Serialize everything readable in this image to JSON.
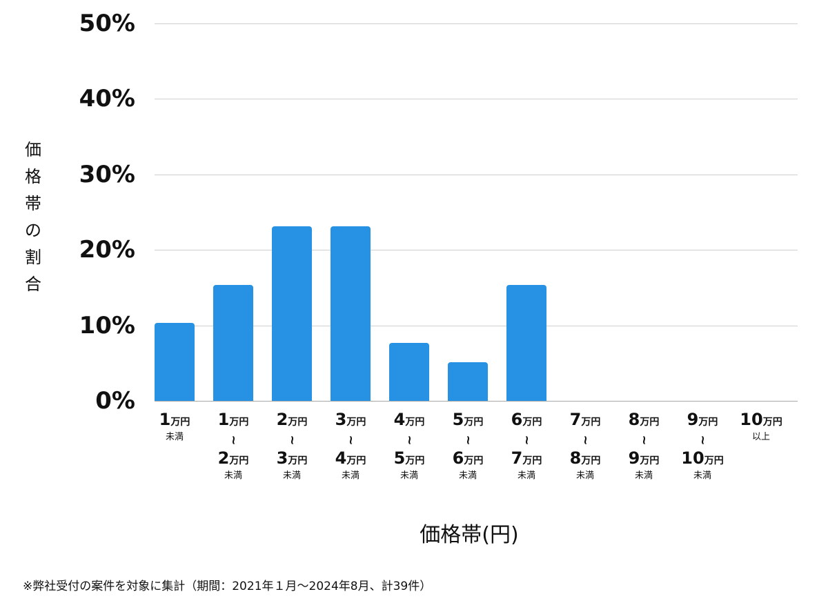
{
  "chart_data": {
    "type": "bar",
    "title": "",
    "xlabel": "価格帯(円)",
    "ylabel": "価格帯の割合",
    "ylim": [
      0,
      50
    ],
    "yticks": [
      "0%",
      "10%",
      "20%",
      "30%",
      "40%",
      "50%"
    ],
    "grid": true,
    "legend": null,
    "bar_color": "#2792e3",
    "categories": [
      "1万円未満",
      "1万円〜2万円未満",
      "2万円〜3万円未満",
      "3万円〜4万円未満",
      "4万円〜5万円未満",
      "5万円〜6万円未満",
      "6万円〜7万円未満",
      "7万円〜8万円未満",
      "8万円〜9万円未満",
      "9万円〜10万円未満",
      "10万円以上"
    ],
    "values": [
      10.3,
      15.4,
      23.1,
      23.1,
      7.7,
      5.1,
      15.4,
      0,
      0,
      0,
      0
    ],
    "annotation": "※弊社受付の案件を対象に集計（期間：2021年１月〜2024年8月、計39件）"
  },
  "axis": {
    "y_ticks": [
      {
        "label": "50%",
        "value": 50
      },
      {
        "label": "40%",
        "value": 40
      },
      {
        "label": "30%",
        "value": 30
      },
      {
        "label": "20%",
        "value": 20
      },
      {
        "label": "10%",
        "value": 10
      },
      {
        "label": "0%",
        "value": 0
      }
    ],
    "y_title_chars": [
      "価",
      "格",
      "帯",
      "の",
      "割",
      "合"
    ],
    "x_title": "価格帯(円)"
  },
  "xticks": [
    {
      "from": "1",
      "to": null,
      "unit": "万円",
      "suffix": "未満"
    },
    {
      "from": "1",
      "to": "2",
      "unit": "万円",
      "suffix": "未満"
    },
    {
      "from": "2",
      "to": "3",
      "unit": "万円",
      "suffix": "未満"
    },
    {
      "from": "3",
      "to": "4",
      "unit": "万円",
      "suffix": "未満"
    },
    {
      "from": "4",
      "to": "5",
      "unit": "万円",
      "suffix": "未満"
    },
    {
      "from": "5",
      "to": "6",
      "unit": "万円",
      "suffix": "未満"
    },
    {
      "from": "6",
      "to": "7",
      "unit": "万円",
      "suffix": "未満"
    },
    {
      "from": "7",
      "to": "8",
      "unit": "万円",
      "suffix": "未満"
    },
    {
      "from": "8",
      "to": "9",
      "unit": "万円",
      "suffix": "未満"
    },
    {
      "from": "9",
      "to": "10",
      "unit": "万円",
      "suffix": "未満"
    },
    {
      "from": "10",
      "to": null,
      "unit": "万円",
      "suffix": "以上"
    }
  ],
  "tilde": "〜",
  "note": "※弊社受付の案件を対象に集計（期間：2021年１月〜2024年8月、計39件）"
}
